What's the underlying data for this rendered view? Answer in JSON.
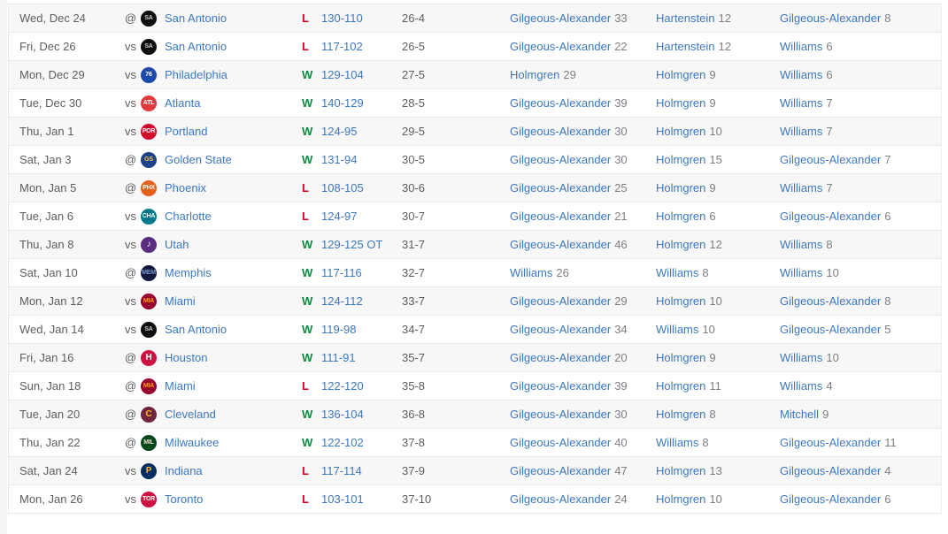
{
  "colors": {
    "link_blue": "#3c78c0",
    "win_green": "#00913d",
    "loss_red": "#d0021b",
    "text_gray": "#5b5e62",
    "value_gray": "#7d8186",
    "row_alt_bg": "#f7f7f7",
    "row_border": "#e8e9ea",
    "gutter_gray": "#f4f4f5"
  },
  "table": {
    "rows": [
      {
        "date": "Wed, Dec 24",
        "site": "@",
        "team": "San Antonio",
        "logo": {
          "text": "SA",
          "bg": "#0e0e0e",
          "fg": "#c4ced4"
        },
        "result": "L",
        "score": "130-110",
        "record": "26-4",
        "pts": {
          "name": "Gilgeous-Alexander",
          "val": "33"
        },
        "reb": {
          "name": "Hartenstein",
          "val": "12"
        },
        "ast": {
          "name": "Gilgeous-Alexander",
          "val": "8"
        }
      },
      {
        "date": "Fri, Dec 26",
        "site": "vs",
        "team": "San Antonio",
        "logo": {
          "text": "SA",
          "bg": "#0e0e0e",
          "fg": "#c4ced4"
        },
        "result": "L",
        "score": "117-102",
        "record": "26-5",
        "pts": {
          "name": "Gilgeous-Alexander",
          "val": "22"
        },
        "reb": {
          "name": "Hartenstein",
          "val": "12"
        },
        "ast": {
          "name": "Williams",
          "val": "6"
        }
      },
      {
        "date": "Mon, Dec 29",
        "site": "vs",
        "team": "Philadelphia",
        "logo": {
          "text": "76",
          "bg": "#1d49a8",
          "fg": "#ffffff"
        },
        "result": "W",
        "score": "129-104",
        "record": "27-5",
        "pts": {
          "name": "Holmgren",
          "val": "29"
        },
        "reb": {
          "name": "Holmgren",
          "val": "9"
        },
        "ast": {
          "name": "Williams",
          "val": "6"
        }
      },
      {
        "date": "Tue, Dec 30",
        "site": "vs",
        "team": "Atlanta",
        "logo": {
          "text": "ATL",
          "bg": "#e03a3e",
          "fg": "#ffffff"
        },
        "result": "W",
        "score": "140-129",
        "record": "28-5",
        "pts": {
          "name": "Gilgeous-Alexander",
          "val": "39"
        },
        "reb": {
          "name": "Holmgren",
          "val": "9"
        },
        "ast": {
          "name": "Williams",
          "val": "7"
        }
      },
      {
        "date": "Thu, Jan 1",
        "site": "vs",
        "team": "Portland",
        "logo": {
          "text": "POR",
          "bg": "#cf0a2c",
          "fg": "#ffffff"
        },
        "result": "W",
        "score": "124-95",
        "record": "29-5",
        "pts": {
          "name": "Gilgeous-Alexander",
          "val": "30"
        },
        "reb": {
          "name": "Holmgren",
          "val": "10"
        },
        "ast": {
          "name": "Williams",
          "val": "7"
        }
      },
      {
        "date": "Sat, Jan 3",
        "site": "@",
        "team": "Golden State",
        "logo": {
          "text": "GS",
          "bg": "#1d428a",
          "fg": "#ffc72c"
        },
        "result": "W",
        "score": "131-94",
        "record": "30-5",
        "pts": {
          "name": "Gilgeous-Alexander",
          "val": "30"
        },
        "reb": {
          "name": "Holmgren",
          "val": "15"
        },
        "ast": {
          "name": "Gilgeous-Alexander",
          "val": "7"
        }
      },
      {
        "date": "Mon, Jan 5",
        "site": "@",
        "team": "Phoenix",
        "logo": {
          "text": "PHX",
          "bg": "#e56020",
          "fg": "#ffffff"
        },
        "result": "L",
        "score": "108-105",
        "record": "30-6",
        "pts": {
          "name": "Gilgeous-Alexander",
          "val": "25"
        },
        "reb": {
          "name": "Holmgren",
          "val": "9"
        },
        "ast": {
          "name": "Williams",
          "val": "7"
        }
      },
      {
        "date": "Tue, Jan 6",
        "site": "vs",
        "team": "Charlotte",
        "logo": {
          "text": "CHA",
          "bg": "#00788c",
          "fg": "#ffffff"
        },
        "result": "L",
        "score": "124-97",
        "record": "30-7",
        "pts": {
          "name": "Gilgeous-Alexander",
          "val": "21"
        },
        "reb": {
          "name": "Holmgren",
          "val": "6"
        },
        "ast": {
          "name": "Gilgeous-Alexander",
          "val": "6"
        }
      },
      {
        "date": "Thu, Jan 8",
        "site": "vs",
        "team": "Utah",
        "logo": {
          "text": "♪",
          "bg": "#5a2d81",
          "fg": "#ffffff"
        },
        "result": "W",
        "score": "129-125 OT",
        "record": "31-7",
        "pts": {
          "name": "Gilgeous-Alexander",
          "val": "46"
        },
        "reb": {
          "name": "Holmgren",
          "val": "12"
        },
        "ast": {
          "name": "Williams",
          "val": "8"
        }
      },
      {
        "date": "Sat, Jan 10",
        "site": "@",
        "team": "Memphis",
        "logo": {
          "text": "MEM",
          "bg": "#12173f",
          "fg": "#7399c6"
        },
        "result": "W",
        "score": "117-116",
        "record": "32-7",
        "pts": {
          "name": "Williams",
          "val": "26"
        },
        "reb": {
          "name": "Williams",
          "val": "8"
        },
        "ast": {
          "name": "Williams",
          "val": "10"
        }
      },
      {
        "date": "Mon, Jan 12",
        "site": "vs",
        "team": "Miami",
        "logo": {
          "text": "MIA",
          "bg": "#98002e",
          "fg": "#f9a01b"
        },
        "result": "W",
        "score": "124-112",
        "record": "33-7",
        "pts": {
          "name": "Gilgeous-Alexander",
          "val": "29"
        },
        "reb": {
          "name": "Holmgren",
          "val": "10"
        },
        "ast": {
          "name": "Gilgeous-Alexander",
          "val": "8"
        }
      },
      {
        "date": "Wed, Jan 14",
        "site": "vs",
        "team": "San Antonio",
        "logo": {
          "text": "SA",
          "bg": "#0e0e0e",
          "fg": "#c4ced4"
        },
        "result": "W",
        "score": "119-98",
        "record": "34-7",
        "pts": {
          "name": "Gilgeous-Alexander",
          "val": "34"
        },
        "reb": {
          "name": "Williams",
          "val": "10"
        },
        "ast": {
          "name": "Gilgeous-Alexander",
          "val": "5"
        }
      },
      {
        "date": "Fri, Jan 16",
        "site": "@",
        "team": "Houston",
        "logo": {
          "text": "H",
          "bg": "#ce1141",
          "fg": "#ffffff"
        },
        "result": "W",
        "score": "111-91",
        "record": "35-7",
        "pts": {
          "name": "Gilgeous-Alexander",
          "val": "20"
        },
        "reb": {
          "name": "Holmgren",
          "val": "9"
        },
        "ast": {
          "name": "Williams",
          "val": "10"
        }
      },
      {
        "date": "Sun, Jan 18",
        "site": "@",
        "team": "Miami",
        "logo": {
          "text": "MIA",
          "bg": "#98002e",
          "fg": "#f9a01b"
        },
        "result": "L",
        "score": "122-120",
        "record": "35-8",
        "pts": {
          "name": "Gilgeous-Alexander",
          "val": "39"
        },
        "reb": {
          "name": "Holmgren",
          "val": "11"
        },
        "ast": {
          "name": "Williams",
          "val": "4"
        }
      },
      {
        "date": "Tue, Jan 20",
        "site": "@",
        "team": "Cleveland",
        "logo": {
          "text": "C",
          "bg": "#6f263d",
          "fg": "#ffb81c"
        },
        "result": "W",
        "score": "136-104",
        "record": "36-8",
        "pts": {
          "name": "Gilgeous-Alexander",
          "val": "30"
        },
        "reb": {
          "name": "Holmgren",
          "val": "8"
        },
        "ast": {
          "name": "Mitchell",
          "val": "9"
        }
      },
      {
        "date": "Thu, Jan 22",
        "site": "@",
        "team": "Milwaukee",
        "logo": {
          "text": "MIL",
          "bg": "#00471b",
          "fg": "#eee1c6"
        },
        "result": "W",
        "score": "122-102",
        "record": "37-8",
        "pts": {
          "name": "Gilgeous-Alexander",
          "val": "40"
        },
        "reb": {
          "name": "Williams",
          "val": "8"
        },
        "ast": {
          "name": "Gilgeous-Alexander",
          "val": "11"
        }
      },
      {
        "date": "Sat, Jan 24",
        "site": "vs",
        "team": "Indiana",
        "logo": {
          "text": "P",
          "bg": "#002d62",
          "fg": "#fdbb30"
        },
        "result": "L",
        "score": "117-114",
        "record": "37-9",
        "pts": {
          "name": "Gilgeous-Alexander",
          "val": "47"
        },
        "reb": {
          "name": "Holmgren",
          "val": "13"
        },
        "ast": {
          "name": "Gilgeous-Alexander",
          "val": "4"
        }
      },
      {
        "date": "Mon, Jan 26",
        "site": "vs",
        "team": "Toronto",
        "logo": {
          "text": "TOR",
          "bg": "#ce1141",
          "fg": "#ffffff"
        },
        "result": "L",
        "score": "103-101",
        "record": "37-10",
        "pts": {
          "name": "Gilgeous-Alexander",
          "val": "24"
        },
        "reb": {
          "name": "Holmgren",
          "val": "10"
        },
        "ast": {
          "name": "Gilgeous-Alexander",
          "val": "6"
        }
      }
    ]
  }
}
